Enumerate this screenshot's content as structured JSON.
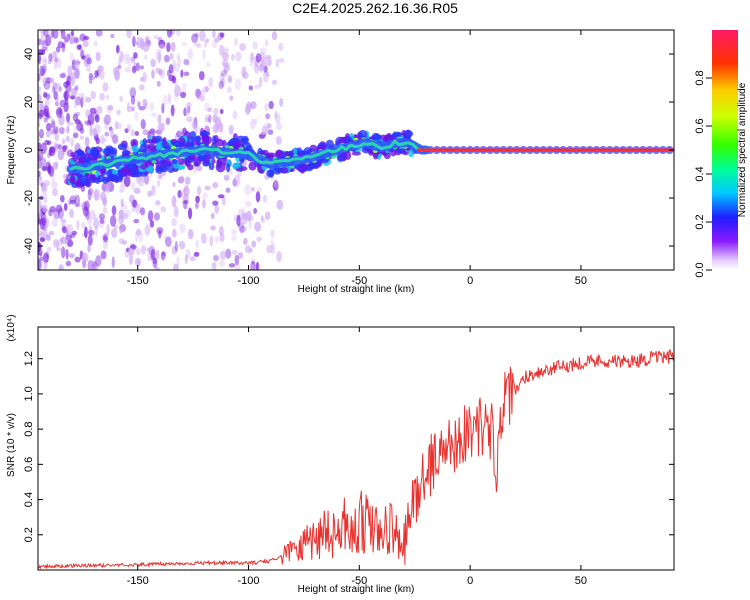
{
  "title": "C2E4.2025.262.16.36.R05",
  "chart_data": [
    {
      "type": "heatmap",
      "name": "spectrogram",
      "xlabel": "Height of straight line (km)",
      "ylabel": "Frequency (Hz)",
      "xlim": [
        -195,
        92
      ],
      "ylim": [
        -50,
        50
      ],
      "xticks": [
        -150,
        -100,
        -50,
        0,
        50
      ],
      "yticks": [
        -40,
        -20,
        0,
        20,
        40
      ],
      "colorbar": {
        "label": "Normalized spectral amplitude",
        "range": [
          0,
          1
        ],
        "ticks": [
          "0.0",
          "0.2",
          "0.4",
          "0.6",
          "0.8"
        ]
      },
      "ridge": {
        "x": [
          -178,
          -160,
          -140,
          -120,
          -100,
          -90,
          -75,
          -60,
          -48,
          -40,
          -33,
          -28,
          -22,
          -15,
          0,
          50,
          90
        ],
        "freq": [
          -8,
          -5,
          -2,
          0,
          -2,
          -6,
          -4,
          0,
          3,
          1,
          3,
          3,
          0,
          0,
          0,
          0,
          0
        ]
      }
    },
    {
      "type": "line",
      "name": "snr",
      "xlabel": "Height of straight line (km)",
      "ylabel": "SNR (10 * v/v)",
      "multiplier": "(x10⁴)",
      "xlim": [
        -195,
        92
      ],
      "ylim": [
        0,
        1.38
      ],
      "xticks": [
        -150,
        -100,
        -50,
        0,
        50
      ],
      "yticks": [
        0.2,
        0.4,
        0.6,
        0.8,
        1.0,
        1.2
      ],
      "color": "#e8322f",
      "series": [
        {
          "name": "SNR",
          "x": [
            -195,
            -150,
            -120,
            -100,
            -90,
            -80,
            -70,
            -60,
            -50,
            -40,
            -35,
            -30,
            -28,
            -25,
            -20,
            -15,
            -10,
            -5,
            0,
            5,
            10,
            12,
            15,
            20,
            25,
            30,
            40,
            50,
            60,
            70,
            80,
            90
          ],
          "values": [
            0.02,
            0.03,
            0.04,
            0.04,
            0.05,
            0.12,
            0.18,
            0.22,
            0.26,
            0.2,
            0.22,
            0.1,
            0.24,
            0.42,
            0.55,
            0.65,
            0.7,
            0.75,
            0.8,
            0.82,
            0.78,
            0.6,
            0.95,
            1.0,
            1.1,
            1.12,
            1.15,
            1.18,
            1.19,
            1.18,
            1.2,
            1.21
          ]
        }
      ]
    }
  ]
}
